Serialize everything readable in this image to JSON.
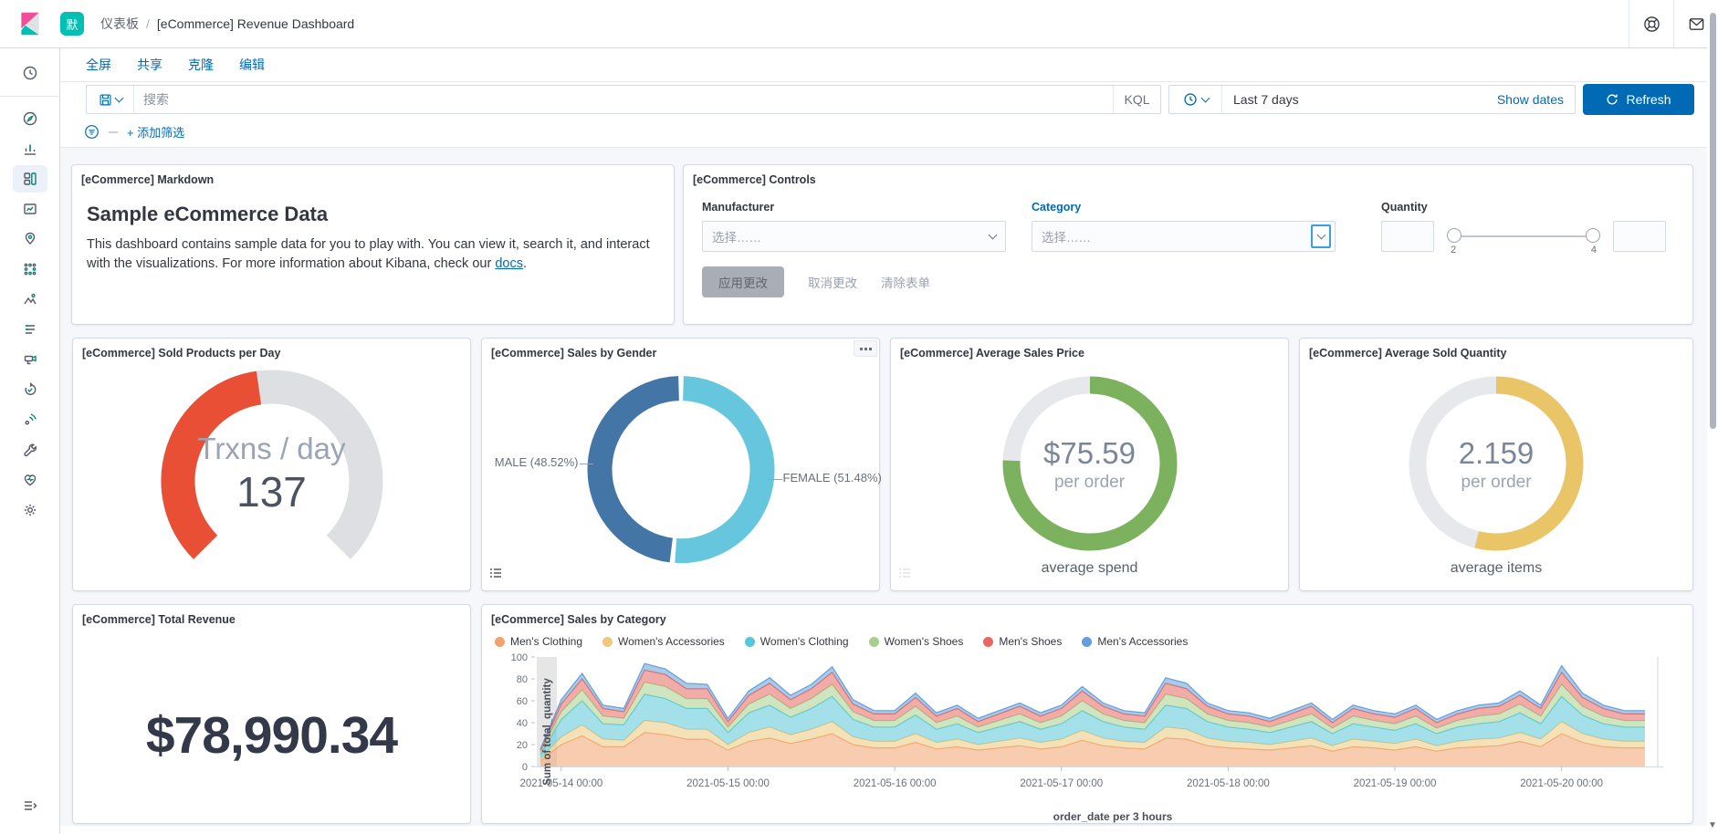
{
  "header": {
    "space_badge": "默",
    "breadcrumb_section": "仪表板",
    "breadcrumb_separator": "/",
    "breadcrumb_page": "[eCommerce] Revenue Dashboard",
    "right_icons": [
      "help-icon",
      "mail-icon"
    ]
  },
  "menu": {
    "items": [
      "全屏",
      "共享",
      "克隆",
      "编辑"
    ]
  },
  "query_bar": {
    "search_placeholder": "搜索",
    "kql_label": "KQL",
    "time_value": "Last 7 days",
    "show_dates_label": "Show dates",
    "refresh_label": "Refresh"
  },
  "filter_bar": {
    "add_filter_label": "+ 添加筛选"
  },
  "sidebar": {
    "items": [
      "recently-viewed",
      "discover",
      "visualize",
      "dashboard",
      "canvas",
      "maps",
      "machine-learning",
      "metrics",
      "logs",
      "security",
      "uptime",
      "apm",
      "dev-tools",
      "stack-monitoring",
      "management"
    ],
    "active_item": "dashboard"
  },
  "panels": {
    "markdown": {
      "title": "[eCommerce] Markdown",
      "heading": "Sample eCommerce Data",
      "body_before": "This dashboard contains sample data for you to play with. You can view it, search it, and interact with the visualizations. For more information about Kibana, check our ",
      "link_text": "docs",
      "body_after": "."
    },
    "controls": {
      "title": "[eCommerce] Controls",
      "manufacturer_label": "Manufacturer",
      "manufacturer_placeholder": "选择……",
      "category_label": "Category",
      "category_placeholder": "选择……",
      "quantity_label": "Quantity",
      "quantity_min": "2",
      "quantity_max": "4",
      "apply_label": "应用更改",
      "cancel_label": "取消更改",
      "clear_label": "清除表单"
    },
    "sold_products": {
      "title": "[eCommerce] Sold Products per Day"
    },
    "sales_by_gender": {
      "title": "[eCommerce] Sales by Gender"
    },
    "average_sales_price": {
      "title": "[eCommerce] Average Sales Price"
    },
    "average_sold_quantity": {
      "title": "[eCommerce] Average Sold Quantity"
    },
    "total_revenue": {
      "title": "[eCommerce] Total Revenue",
      "value": "$78,990.34"
    },
    "sales_by_category": {
      "title": "[eCommerce] Sales by Category"
    }
  },
  "chart_data": [
    {
      "type": "gauge",
      "title": "[eCommerce] Sold Products per Day",
      "label": "Trxns / day",
      "value": 137,
      "display_value": "137",
      "range": [
        0,
        300
      ],
      "arc_degrees": 270,
      "fill_fraction": 0.47,
      "fill_color": "#E94F35",
      "track_color": "#DDDFE3"
    },
    {
      "type": "pie",
      "title": "[eCommerce] Sales by Gender",
      "slices": [
        {
          "label": "FEMALE (51.48%)",
          "name": "FEMALE",
          "value": 51.48,
          "color": "#65C6DD",
          "side": "right"
        },
        {
          "label": "MALE (48.52%)",
          "name": "MALE",
          "value": 48.52,
          "color": "#4375A7",
          "side": "left"
        }
      ],
      "legend": "off"
    },
    {
      "type": "pie",
      "title": "[eCommerce] Average Sales Price",
      "percent": 75.59,
      "color": "#7CB15E",
      "track_color": "#E6E8EB",
      "center_value": "$75.59",
      "center_sub": "per order",
      "caption": "average spend"
    },
    {
      "type": "pie",
      "title": "[eCommerce] Average Sold Quantity",
      "percent": 53.98,
      "color": "#E9C567",
      "track_color": "#E6E8EB",
      "center_value": "2.159",
      "center_sub": "per order",
      "caption": "average items"
    },
    {
      "type": "area",
      "title": "[eCommerce] Sales by Category",
      "stacked": true,
      "ylabel": "Sum of total_quantity",
      "xlabel": "order_date per 3 hours",
      "ylim": [
        0,
        100
      ],
      "yticks": [
        0,
        20,
        40,
        60,
        80,
        100
      ],
      "x_tick_indices": [
        1,
        9,
        17,
        25,
        33,
        41,
        49
      ],
      "x_tick_labels": [
        "2021-05-14 00:00",
        "2021-05-15 00:00",
        "2021-05-16 00:00",
        "2021-05-17 00:00",
        "2021-05-18 00:00",
        "2021-05-19 00:00",
        "2021-05-20 00:00"
      ],
      "legend_position": "top",
      "series": [
        {
          "name": "Men's Clothing",
          "color": "#F2A26E",
          "values": [
            5,
            20,
            28,
            18,
            18,
            31,
            29,
            25,
            25,
            15,
            23,
            26,
            21,
            25,
            30,
            20,
            17,
            17,
            22,
            16,
            18,
            15,
            17,
            19,
            16,
            18,
            24,
            19,
            17,
            16,
            26,
            25,
            19,
            17,
            16,
            15,
            17,
            19,
            14,
            18,
            17,
            15,
            18,
            14,
            17,
            18,
            19,
            23,
            18,
            30,
            22,
            18,
            17,
            17
          ]
        },
        {
          "name": "Women's Accessories",
          "color": "#EDC87E",
          "values": [
            2,
            7,
            10,
            7,
            6,
            11,
            11,
            9,
            9,
            5,
            8,
            10,
            8,
            9,
            11,
            7,
            6,
            6,
            8,
            6,
            7,
            5,
            6,
            7,
            6,
            7,
            9,
            7,
            6,
            6,
            10,
            9,
            7,
            6,
            6,
            5,
            6,
            7,
            5,
            7,
            6,
            6,
            7,
            5,
            6,
            7,
            7,
            8,
            7,
            11,
            8,
            7,
            6,
            6
          ]
        },
        {
          "name": "Women's Clothing",
          "color": "#57C7D7",
          "values": [
            4,
            16,
            22,
            14,
            14,
            24,
            22,
            19,
            19,
            11,
            18,
            20,
            16,
            19,
            23,
            16,
            13,
            13,
            17,
            12,
            14,
            11,
            13,
            15,
            12,
            14,
            18,
            15,
            13,
            12,
            20,
            19,
            15,
            13,
            12,
            11,
            13,
            15,
            11,
            14,
            13,
            12,
            14,
            11,
            13,
            14,
            15,
            18,
            14,
            23,
            17,
            14,
            13,
            13
          ]
        },
        {
          "name": "Women's Shoes",
          "color": "#A7CF8C",
          "values": [
            2,
            7,
            10,
            7,
            6,
            11,
            11,
            9,
            9,
            5,
            8,
            10,
            8,
            9,
            11,
            7,
            6,
            6,
            8,
            6,
            7,
            5,
            6,
            7,
            6,
            7,
            9,
            7,
            6,
            6,
            10,
            9,
            7,
            6,
            6,
            5,
            6,
            7,
            5,
            7,
            6,
            6,
            7,
            5,
            6,
            7,
            7,
            8,
            7,
            11,
            8,
            7,
            6,
            6
          ]
        },
        {
          "name": "Men's Shoes",
          "color": "#E8685F",
          "values": [
            2,
            7,
            10,
            7,
            6,
            11,
            11,
            9,
            9,
            5,
            8,
            10,
            8,
            9,
            11,
            7,
            6,
            6,
            8,
            6,
            7,
            5,
            6,
            7,
            6,
            7,
            9,
            7,
            6,
            6,
            10,
            9,
            7,
            6,
            6,
            5,
            6,
            7,
            5,
            7,
            6,
            6,
            7,
            5,
            6,
            7,
            7,
            8,
            7,
            11,
            8,
            7,
            6,
            6
          ]
        },
        {
          "name": "Men's Accessories",
          "color": "#659FD9",
          "values": [
            1,
            4,
            5,
            3,
            3,
            6,
            5,
            5,
            4,
            3,
            4,
            5,
            4,
            4,
            5,
            4,
            3,
            3,
            4,
            3,
            3,
            3,
            3,
            3,
            3,
            3,
            4,
            3,
            3,
            3,
            5,
            5,
            3,
            3,
            3,
            3,
            3,
            3,
            3,
            3,
            3,
            3,
            3,
            3,
            3,
            3,
            3,
            4,
            3,
            6,
            4,
            3,
            3,
            3
          ]
        }
      ]
    }
  ],
  "colors": {
    "accent": "#006BB4",
    "brand_teal": "#00BFB3",
    "brand_pink": "#F04E98",
    "panel_border": "#D3DAE6",
    "page_background": "#F5F7FA"
  }
}
